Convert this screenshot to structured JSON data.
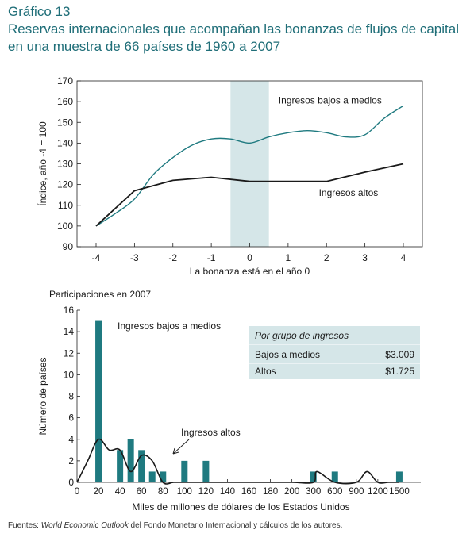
{
  "header": {
    "figure_label": "Gráfico 13",
    "title_line1": "Reservas internacionales que acompañan las bonanzas de flujos de capital",
    "title_line2": "en una muestra de 66 países de 1960 a 2007"
  },
  "source": {
    "prefix": "Fuentes: ",
    "italic": "World Economic Outlook",
    "suffix": " del Fondo Monetario Internacional y cálculos de los autores."
  },
  "colors": {
    "teal": "#1f7a80",
    "shade": "#d5e6e8",
    "dark": "#1a1a1a"
  },
  "chart_data": [
    {
      "type": "line",
      "title": "",
      "xlabel": "La bonanza está en el año 0",
      "ylabel": "Índice, año -4 = 100",
      "xlim": [
        -4,
        4
      ],
      "ylim": [
        90,
        170
      ],
      "x_ticks": [
        -4,
        -3,
        -2,
        -1,
        0,
        1,
        2,
        3,
        4
      ],
      "y_ticks": [
        90,
        100,
        110,
        120,
        130,
        140,
        150,
        160,
        170
      ],
      "shaded_band": [
        -0.5,
        0.5
      ],
      "series": [
        {
          "name": "Ingresos bajos a medios",
          "color": "#1f7a80",
          "x": [
            -4,
            -3.5,
            -3,
            -2.5,
            -2,
            -1.5,
            -1,
            -0.5,
            0,
            0.5,
            1,
            1.5,
            2,
            2.5,
            3,
            3.5,
            4
          ],
          "y": [
            100,
            106,
            113,
            125,
            133,
            139,
            142,
            142,
            140,
            143,
            145,
            146,
            145,
            143,
            144,
            152,
            158
          ]
        },
        {
          "name": "Ingresos altos",
          "color": "#1a1a1a",
          "x": [
            -4,
            -3,
            -2,
            -1,
            0,
            1,
            2,
            3,
            4
          ],
          "y": [
            100,
            117,
            122,
            123.5,
            121.5,
            121.5,
            121.5,
            126,
            130
          ]
        }
      ]
    },
    {
      "type": "bar",
      "title": "Participaciones en 2007",
      "xlabel": "Miles de millones de dólares de los Estados Unidos",
      "ylabel": "Número de países",
      "ylim": [
        0,
        16
      ],
      "y_ticks": [
        0,
        2,
        4,
        6,
        8,
        10,
        12,
        14,
        16
      ],
      "x_tick_labels": [
        "0",
        "20",
        "40",
        "60",
        "80",
        "100",
        "120",
        "140",
        "160",
        "180",
        "200",
        "300",
        "600",
        "900",
        "1200",
        "1500"
      ],
      "series": [
        {
          "name": "Ingresos bajos a medios",
          "color": "#1f7a80",
          "categories": [
            "20",
            "40",
            "50",
            "60",
            "70",
            "80",
            "100",
            "120",
            "300",
            "600",
            "1500"
          ],
          "values": [
            15,
            3,
            4,
            3,
            1,
            1,
            2,
            2,
            1,
            1,
            1
          ]
        },
        {
          "name": "Ingresos altos",
          "color": "#1a1a1a",
          "curve": true,
          "x": [
            0,
            10,
            20,
            30,
            40,
            50,
            60,
            70,
            80,
            90,
            100,
            120,
            140,
            160,
            180,
            200,
            300,
            350,
            600,
            900,
            1050,
            1200,
            1350,
            1500
          ],
          "values": [
            0,
            2,
            4,
            3,
            3,
            1,
            2.5,
            2,
            0,
            0,
            0,
            0,
            0,
            0,
            0,
            0,
            0,
            1,
            0,
            0,
            1,
            0,
            0,
            0
          ]
        }
      ],
      "info_box": {
        "title": "Por grupo de ingresos",
        "rows": [
          {
            "label": "Bajos a medios",
            "value": "$3.009"
          },
          {
            "label": "Altos",
            "value": "$1.725"
          }
        ]
      }
    }
  ]
}
